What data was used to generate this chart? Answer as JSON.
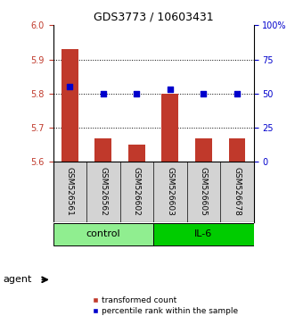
{
  "title": "GDS3773 / 10603431",
  "samples": [
    "GSM526561",
    "GSM526562",
    "GSM526602",
    "GSM526603",
    "GSM526605",
    "GSM526678"
  ],
  "bar_values": [
    5.93,
    5.67,
    5.65,
    5.8,
    5.67,
    5.67
  ],
  "bar_bottom": 5.6,
  "percentile_values": [
    55,
    50,
    50,
    53,
    50,
    50
  ],
  "ylim_left": [
    5.6,
    6.0
  ],
  "ylim_right": [
    0,
    100
  ],
  "yticks_left": [
    5.6,
    5.7,
    5.8,
    5.9,
    6.0
  ],
  "yticks_right": [
    0,
    25,
    50,
    75,
    100
  ],
  "ytick_labels_right": [
    "0",
    "25",
    "50",
    "75",
    "100%"
  ],
  "bar_color": "#c0392b",
  "dot_color": "#0000cc",
  "groups": [
    {
      "label": "control",
      "indices": [
        0,
        1,
        2
      ],
      "color": "#90ee90"
    },
    {
      "label": "IL-6",
      "indices": [
        3,
        4,
        5
      ],
      "color": "#00cc00"
    }
  ],
  "agent_label": "agent",
  "legend_bar_label": "transformed count",
  "legend_dot_label": "percentile rank within the sample",
  "background_color": "#ffffff",
  "sample_box_color": "#d3d3d3"
}
